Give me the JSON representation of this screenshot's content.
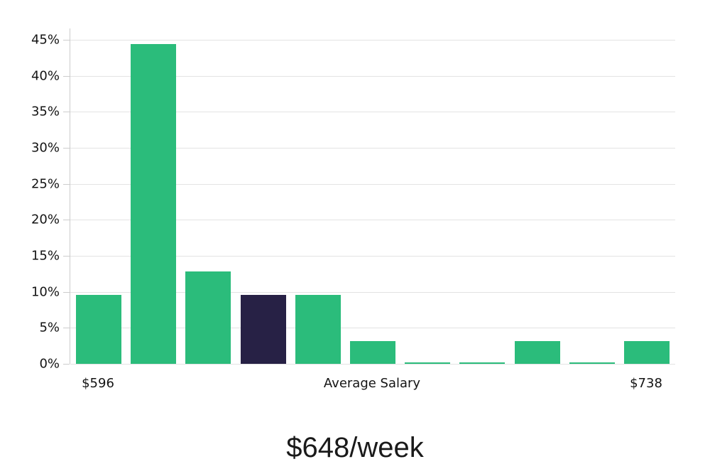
{
  "chart_data": {
    "type": "bar",
    "title": "$648/week",
    "xlabel": "Average Salary",
    "ylabel": "",
    "categories": [
      "$596",
      "",
      "",
      "",
      "",
      "",
      "",
      "",
      "",
      "",
      "$738"
    ],
    "values": [
      9.6,
      44.4,
      12.8,
      9.6,
      9.6,
      3.2,
      0.15,
      0.15,
      3.2,
      0.15,
      3.2
    ],
    "highlighted_index": 3,
    "bar_color": "#2bbc7b",
    "highlight_color": "#272145",
    "y_ticks": [
      {
        "value": 0,
        "label": "0%"
      },
      {
        "value": 5,
        "label": "5%"
      },
      {
        "value": 10,
        "label": "10%"
      },
      {
        "value": 15,
        "label": "15%"
      },
      {
        "value": 20,
        "label": "20%"
      },
      {
        "value": 25,
        "label": "25%"
      },
      {
        "value": 30,
        "label": "30%"
      },
      {
        "value": 35,
        "label": "35%"
      },
      {
        "value": 40,
        "label": "40%"
      },
      {
        "value": 45,
        "label": "45%"
      }
    ],
    "ylim": [
      0,
      46.6
    ],
    "grid": true,
    "legend": "none",
    "grid_color": "#e3e3e3",
    "axis_color": "#cccccc",
    "text_color": "#141414"
  }
}
